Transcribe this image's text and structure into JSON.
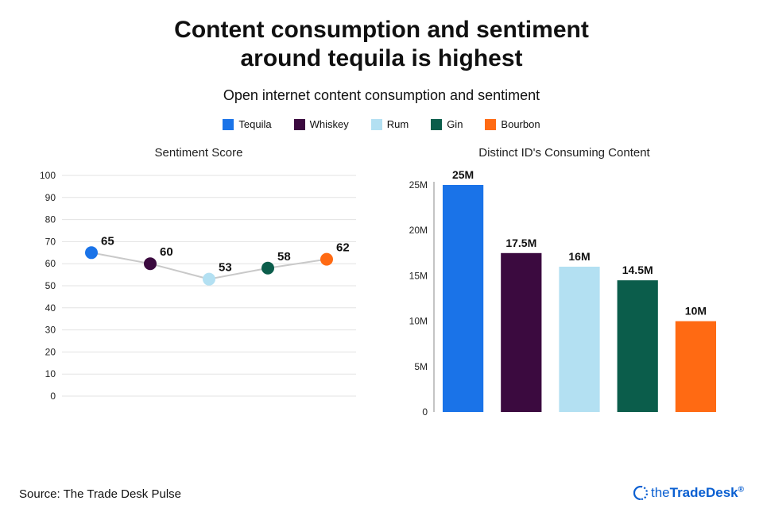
{
  "title_line1": "Content consumption and sentiment",
  "title_line2": "around tequila is highest",
  "subtitle": "Open internet content consumption and sentiment",
  "categories": [
    {
      "name": "Tequila",
      "color": "#1a73e8"
    },
    {
      "name": "Whiskey",
      "color": "#3b0a3f"
    },
    {
      "name": "Rum",
      "color": "#b3e0f2"
    },
    {
      "name": "Gin",
      "color": "#0b5d4b"
    },
    {
      "name": "Bourbon",
      "color": "#ff6a13"
    }
  ],
  "sentiment_chart": {
    "type": "line",
    "title": "Sentiment Score",
    "values": [
      65,
      60,
      53,
      58,
      62
    ],
    "ylim": [
      0,
      100
    ],
    "ytick_step": 10,
    "line_color": "#c9c9c9",
    "line_width": 2,
    "marker_radius": 8,
    "grid_color": "#e3e3e3",
    "axis_fontsize": 12,
    "label_fontsize": 15,
    "background": "#ffffff"
  },
  "consumption_chart": {
    "type": "bar",
    "title": "Distinct ID's Consuming Content",
    "values": [
      25,
      17.5,
      16,
      14.5,
      10
    ],
    "display_labels": [
      "25M",
      "17.5M",
      "16M",
      "14.5M",
      "10M"
    ],
    "ylim": [
      0,
      25
    ],
    "ytick_step": 5,
    "ytick_labels": [
      "0",
      "5M",
      "10M",
      "15M",
      "20M",
      "25M"
    ],
    "bar_width": 0.7,
    "axis_fontsize": 12,
    "label_fontsize": 14,
    "background": "#ffffff"
  },
  "source_label": "Source: The Trade Desk Pulse",
  "brand": {
    "prefix": "the",
    "main": "TradeDesk",
    "color": "#0a5fd1"
  }
}
